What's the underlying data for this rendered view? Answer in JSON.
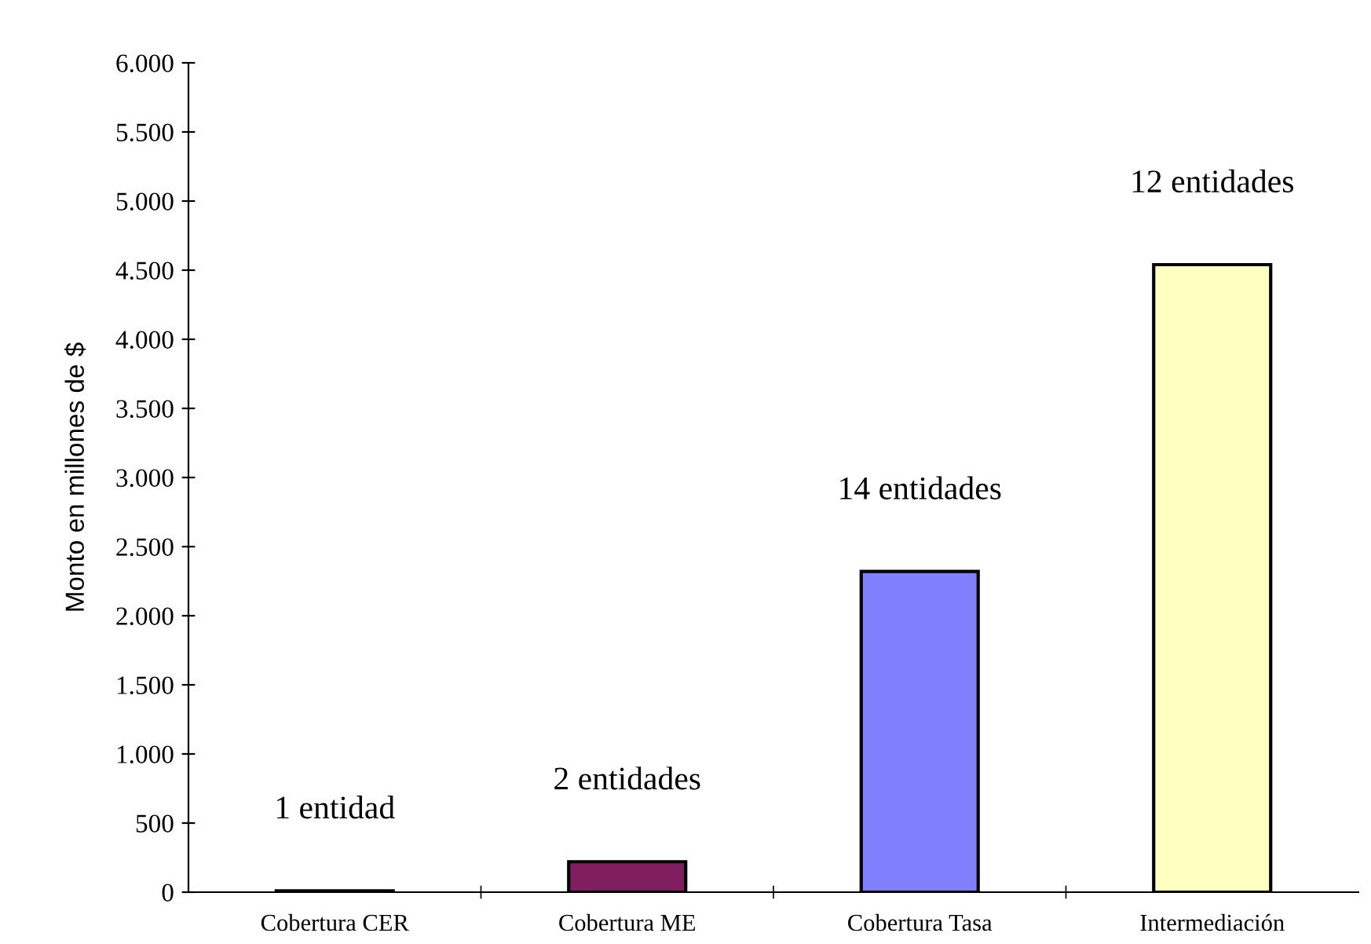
{
  "chart_data": {
    "type": "bar",
    "ylabel": "Monto en millones de $",
    "categories": [
      "Cobertura CER",
      "Cobertura ME",
      "Cobertura Tasa",
      "Intermediación"
    ],
    "values": [
      10,
      220,
      2320,
      4540
    ],
    "colors": [
      "#000000",
      "#7f1f5f",
      "#8080ff",
      "#ffffc0"
    ],
    "ylim": [
      0,
      6000
    ],
    "yticks": [
      {
        "value": 0,
        "label": "0"
      },
      {
        "value": 500,
        "label": "500"
      },
      {
        "value": 1000,
        "label": "1.000"
      },
      {
        "value": 1500,
        "label": "1.500"
      },
      {
        "value": 2000,
        "label": "2.000"
      },
      {
        "value": 2500,
        "label": "2.500"
      },
      {
        "value": 3000,
        "label": "3.000"
      },
      {
        "value": 3500,
        "label": "3.500"
      },
      {
        "value": 4000,
        "label": "4.000"
      },
      {
        "value": 4500,
        "label": "4.500"
      },
      {
        "value": 5000,
        "label": "5.000"
      },
      {
        "value": 5500,
        "label": "5.500"
      },
      {
        "value": 6000,
        "label": "6.000"
      }
    ],
    "annotations": [
      {
        "text": "1 entidad",
        "x": "Cobertura CER",
        "y": 10
      },
      {
        "text": "2 entidades",
        "x": "Cobertura ME",
        "y": 220
      },
      {
        "text": "14 entidades",
        "x": "Cobertura Tasa",
        "y": 2320
      },
      {
        "text": "12 entidades",
        "x": "Intermediación",
        "y": 4540
      }
    ],
    "grid": false,
    "legend": false
  }
}
